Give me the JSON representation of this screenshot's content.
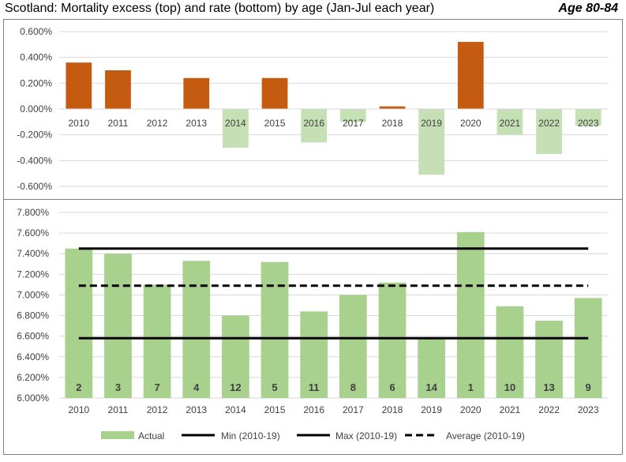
{
  "header": {
    "title": "Scotland: Mortality excess (top) and rate (bottom) by age (Jan-Jul each year)",
    "badge": "Age 80-84"
  },
  "colors": {
    "excess_positive": "#c55a11",
    "excess_negative": "#c5e0b4",
    "actual": "#a9d18e",
    "grid": "#d9d9d9",
    "lines": "#000000"
  },
  "chart_data": [
    {
      "type": "bar",
      "categories": [
        "2010",
        "2011",
        "2012",
        "2013",
        "2014",
        "2015",
        "2016",
        "2017",
        "2018",
        "2019",
        "2020",
        "2021",
        "2022",
        "2023"
      ],
      "values": [
        0.36,
        0.3,
        0.0,
        0.24,
        -0.3,
        0.24,
        -0.26,
        -0.1,
        0.02,
        -0.51,
        0.52,
        -0.2,
        -0.35,
        -0.13
      ],
      "value_unit": "%",
      "ylim": [
        -0.6,
        0.6
      ],
      "yticks": [
        0.6,
        0.4,
        0.2,
        0.0,
        -0.2,
        -0.4,
        -0.6
      ],
      "ytick_labels": [
        "0.600%",
        "0.400%",
        "0.200%",
        "0.000%",
        "-0.200%",
        "-0.400%",
        "-0.600%"
      ],
      "grid": true
    },
    {
      "type": "bar",
      "categories": [
        "2010",
        "2011",
        "2012",
        "2013",
        "2014",
        "2015",
        "2016",
        "2017",
        "2018",
        "2019",
        "2020",
        "2021",
        "2022",
        "2023"
      ],
      "series": [
        {
          "name": "Actual",
          "values": [
            7.45,
            7.4,
            7.1,
            7.33,
            6.8,
            7.32,
            6.84,
            7.0,
            7.12,
            6.58,
            7.61,
            6.89,
            6.75,
            6.97
          ]
        }
      ],
      "ranks": [
        "2",
        "3",
        "7",
        "4",
        "12",
        "5",
        "11",
        "8",
        "6",
        "14",
        "1",
        "10",
        "13",
        "9"
      ],
      "lines": [
        {
          "name": "Min (2010-19)",
          "value": 6.58,
          "style": "solid"
        },
        {
          "name": "Max (2010-19)",
          "value": 7.45,
          "style": "solid"
        },
        {
          "name": "Average (2010-19)",
          "value": 7.09,
          "style": "dashed"
        }
      ],
      "value_unit": "%",
      "ylim": [
        6.0,
        7.8
      ],
      "yticks": [
        7.8,
        7.6,
        7.4,
        7.2,
        7.0,
        6.8,
        6.6,
        6.4,
        6.2,
        6.0
      ],
      "ytick_labels": [
        "7.800%",
        "7.600%",
        "7.400%",
        "7.200%",
        "7.000%",
        "6.800%",
        "6.600%",
        "6.400%",
        "6.200%",
        "6.000%"
      ],
      "legend_position": "bottom",
      "grid": true
    }
  ]
}
